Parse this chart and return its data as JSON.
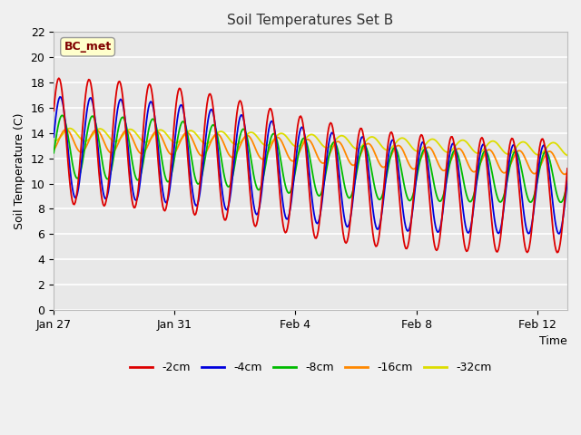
{
  "title": "Soil Temperatures Set B",
  "xlabel": "Time",
  "ylabel": "Soil Temperature (C)",
  "annotation": "BC_met",
  "ylim": [
    0,
    22
  ],
  "yticks": [
    0,
    2,
    4,
    6,
    8,
    10,
    12,
    14,
    16,
    18,
    20,
    22
  ],
  "xtick_labels": [
    "Jan 27",
    "Jan 31",
    "Feb 4",
    "Feb 8",
    "Feb 12"
  ],
  "xtick_positions": [
    0,
    4,
    8,
    12,
    16
  ],
  "colors": {
    "-2cm": "#dd0000",
    "-4cm": "#0000dd",
    "-8cm": "#00bb00",
    "-16cm": "#ff8800",
    "-32cm": "#dddd00"
  },
  "fig_bg": "#f0f0f0",
  "axes_bg": "#e8e8e8",
  "total_days": 17,
  "n_points": 500
}
